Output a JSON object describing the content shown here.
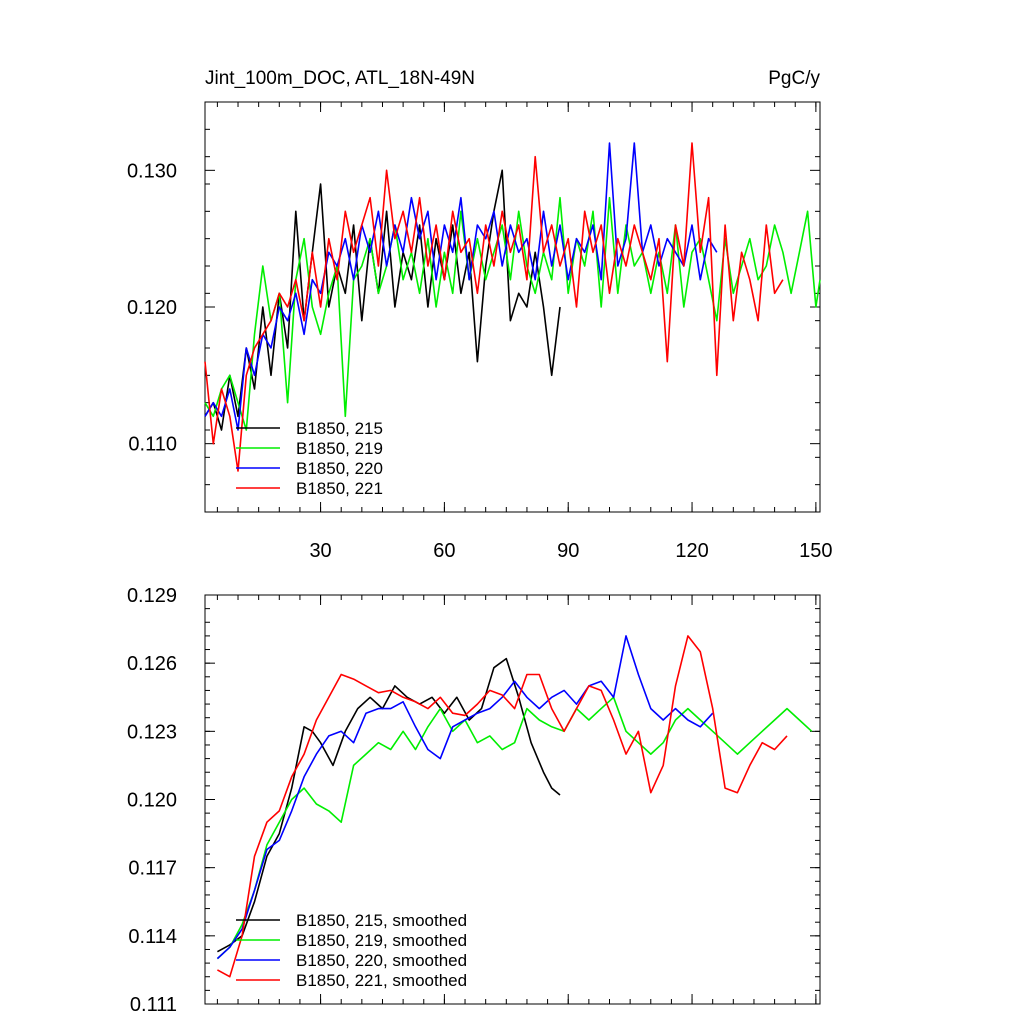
{
  "chart_data": [
    {
      "type": "line",
      "title": "Jint_100m_DOC, ATL_18N-49N",
      "units": "PgC/y",
      "xlim": [
        2,
        151
      ],
      "ylim": [
        0.105,
        0.135
      ],
      "xticks": [
        30,
        60,
        90,
        120,
        150
      ],
      "xtick_labels": [
        "30",
        "60",
        "90",
        "120",
        "150"
      ],
      "yticks": [
        0.11,
        0.12,
        0.13
      ],
      "ytick_labels": [
        "0.110",
        "0.120",
        "0.130"
      ],
      "legend_position": "bottom-left",
      "series": [
        {
          "name": "B1850, 215",
          "color": "#000000",
          "x": [
            2,
            4,
            6,
            8,
            10,
            12,
            14,
            16,
            18,
            20,
            22,
            24,
            26,
            28,
            30,
            32,
            34,
            36,
            38,
            40,
            42,
            44,
            46,
            48,
            50,
            52,
            54,
            56,
            58,
            60,
            62,
            64,
            66,
            68,
            70,
            72,
            74,
            76,
            78,
            80,
            82,
            84,
            86,
            88
          ],
          "y": [
            0.112,
            0.113,
            0.111,
            0.115,
            0.112,
            0.117,
            0.114,
            0.12,
            0.115,
            0.121,
            0.117,
            0.127,
            0.119,
            0.124,
            0.129,
            0.12,
            0.123,
            0.121,
            0.126,
            0.119,
            0.125,
            0.121,
            0.127,
            0.12,
            0.124,
            0.122,
            0.126,
            0.12,
            0.125,
            0.122,
            0.126,
            0.121,
            0.124,
            0.116,
            0.123,
            0.127,
            0.13,
            0.119,
            0.121,
            0.12,
            0.124,
            0.12,
            0.115,
            0.12
          ]
        },
        {
          "name": "B1850, 219",
          "color": "#00ee00",
          "x": [
            2,
            4,
            6,
            8,
            10,
            12,
            14,
            16,
            18,
            20,
            22,
            24,
            26,
            28,
            30,
            32,
            34,
            36,
            38,
            40,
            42,
            44,
            46,
            48,
            50,
            52,
            54,
            56,
            58,
            60,
            62,
            64,
            66,
            68,
            70,
            72,
            74,
            76,
            78,
            80,
            82,
            84,
            86,
            88,
            90,
            92,
            94,
            96,
            98,
            100,
            102,
            104,
            106,
            108,
            110,
            112,
            114,
            116,
            118,
            120,
            122,
            124,
            126,
            128,
            130,
            132,
            134,
            136,
            138,
            140,
            142,
            144,
            146,
            148,
            150,
            151
          ],
          "y": [
            0.113,
            0.112,
            0.114,
            0.115,
            0.113,
            0.111,
            0.118,
            0.123,
            0.119,
            0.121,
            0.113,
            0.122,
            0.125,
            0.12,
            0.118,
            0.121,
            0.123,
            0.112,
            0.122,
            0.123,
            0.125,
            0.121,
            0.123,
            0.126,
            0.122,
            0.124,
            0.121,
            0.125,
            0.12,
            0.124,
            0.121,
            0.127,
            0.122,
            0.125,
            0.122,
            0.124,
            0.126,
            0.122,
            0.127,
            0.123,
            0.121,
            0.124,
            0.122,
            0.128,
            0.121,
            0.125,
            0.123,
            0.127,
            0.12,
            0.128,
            0.121,
            0.126,
            0.123,
            0.124,
            0.121,
            0.124,
            0.121,
            0.126,
            0.12,
            0.124,
            0.125,
            0.122,
            0.119,
            0.125,
            0.121,
            0.123,
            0.125,
            0.122,
            0.123,
            0.126,
            0.124,
            0.121,
            0.124,
            0.127,
            0.12,
            0.122
          ]
        },
        {
          "name": "B1850, 220",
          "color": "#0000ff",
          "x": [
            2,
            4,
            6,
            8,
            10,
            12,
            14,
            16,
            18,
            20,
            22,
            24,
            26,
            28,
            30,
            32,
            34,
            36,
            38,
            40,
            42,
            44,
            46,
            48,
            50,
            52,
            54,
            56,
            58,
            60,
            62,
            64,
            66,
            68,
            70,
            72,
            74,
            76,
            78,
            80,
            82,
            84,
            86,
            88,
            90,
            92,
            94,
            96,
            98,
            100,
            102,
            104,
            106,
            108,
            110,
            112,
            114,
            116,
            118,
            120,
            122,
            124,
            126
          ],
          "y": [
            0.112,
            0.113,
            0.112,
            0.114,
            0.111,
            0.117,
            0.115,
            0.118,
            0.117,
            0.12,
            0.119,
            0.121,
            0.118,
            0.122,
            0.121,
            0.124,
            0.123,
            0.125,
            0.122,
            0.126,
            0.124,
            0.127,
            0.123,
            0.126,
            0.124,
            0.128,
            0.125,
            0.127,
            0.122,
            0.126,
            0.124,
            0.128,
            0.122,
            0.126,
            0.125,
            0.127,
            0.123,
            0.126,
            0.124,
            0.125,
            0.122,
            0.127,
            0.123,
            0.126,
            0.122,
            0.125,
            0.124,
            0.126,
            0.122,
            0.132,
            0.123,
            0.125,
            0.132,
            0.124,
            0.126,
            0.123,
            0.125,
            0.124,
            0.123,
            0.126,
            0.122,
            0.125,
            0.124
          ]
        },
        {
          "name": "B1850, 221",
          "color": "#ff0000",
          "x": [
            2,
            4,
            6,
            8,
            10,
            12,
            14,
            16,
            18,
            20,
            22,
            24,
            26,
            28,
            30,
            32,
            34,
            36,
            38,
            40,
            42,
            44,
            46,
            48,
            50,
            52,
            54,
            56,
            58,
            60,
            62,
            64,
            66,
            68,
            70,
            72,
            74,
            76,
            78,
            80,
            82,
            84,
            86,
            88,
            90,
            92,
            94,
            96,
            98,
            100,
            102,
            104,
            106,
            108,
            110,
            112,
            114,
            116,
            118,
            120,
            122,
            124,
            126,
            128,
            130,
            132,
            134,
            136,
            138,
            140,
            142
          ],
          "y": [
            0.116,
            0.11,
            0.114,
            0.112,
            0.108,
            0.115,
            0.117,
            0.118,
            0.119,
            0.121,
            0.12,
            0.122,
            0.119,
            0.124,
            0.12,
            0.125,
            0.122,
            0.127,
            0.124,
            0.126,
            0.128,
            0.123,
            0.13,
            0.125,
            0.127,
            0.124,
            0.128,
            0.123,
            0.126,
            0.122,
            0.127,
            0.124,
            0.125,
            0.121,
            0.126,
            0.123,
            0.127,
            0.124,
            0.126,
            0.122,
            0.131,
            0.124,
            0.126,
            0.123,
            0.125,
            0.12,
            0.127,
            0.124,
            0.126,
            0.121,
            0.125,
            0.123,
            0.126,
            0.124,
            0.122,
            0.125,
            0.116,
            0.126,
            0.123,
            0.132,
            0.124,
            0.128,
            0.115,
            0.126,
            0.119,
            0.124,
            0.122,
            0.119,
            0.126,
            0.121,
            0.122
          ]
        }
      ]
    },
    {
      "type": "line",
      "title": "",
      "xlim": [
        2,
        151
      ],
      "ylim": [
        0.111,
        0.129
      ],
      "xticks": [
        30,
        60,
        90,
        120,
        150
      ],
      "yticks": [
        0.111,
        0.114,
        0.117,
        0.12,
        0.123,
        0.126,
        0.129
      ],
      "ytick_labels": [
        "0.111",
        "0.114",
        "0.117",
        "0.120",
        "0.123",
        "0.126",
        "0.129"
      ],
      "legend_position": "bottom-left",
      "series": [
        {
          "name": "B1850, 215, smoothed",
          "color": "#000000",
          "x": [
            5,
            8,
            11,
            14,
            17,
            20,
            23,
            26,
            28,
            30,
            33,
            36,
            39,
            42,
            45,
            48,
            51,
            54,
            57,
            60,
            63,
            66,
            69,
            72,
            75,
            78,
            81,
            84,
            86,
            88
          ],
          "y": [
            0.1133,
            0.1136,
            0.114,
            0.1155,
            0.1175,
            0.1185,
            0.1205,
            0.1232,
            0.123,
            0.1225,
            0.1215,
            0.123,
            0.124,
            0.1245,
            0.124,
            0.125,
            0.1245,
            0.1242,
            0.1245,
            0.1238,
            0.1245,
            0.1235,
            0.124,
            0.1258,
            0.1262,
            0.1245,
            0.1225,
            0.1212,
            0.1205,
            0.1202
          ]
        },
        {
          "name": "B1850, 219, smoothed",
          "color": "#00ee00",
          "x": [
            5,
            8,
            11,
            14,
            17,
            20,
            23,
            26,
            29,
            32,
            35,
            38,
            41,
            44,
            47,
            50,
            53,
            56,
            59,
            62,
            65,
            68,
            71,
            74,
            77,
            80,
            83,
            86,
            89,
            92,
            95,
            98,
            101,
            104,
            107,
            110,
            113,
            116,
            119,
            122,
            125,
            128,
            131,
            134,
            137,
            140,
            143,
            146,
            149
          ],
          "y": [
            0.113,
            0.1135,
            0.1145,
            0.116,
            0.118,
            0.119,
            0.12,
            0.1205,
            0.1198,
            0.1195,
            0.119,
            0.1215,
            0.122,
            0.1225,
            0.1222,
            0.123,
            0.1222,
            0.1232,
            0.124,
            0.123,
            0.1235,
            0.1225,
            0.1228,
            0.1222,
            0.1225,
            0.124,
            0.1235,
            0.1232,
            0.123,
            0.124,
            0.1235,
            0.124,
            0.1245,
            0.123,
            0.1225,
            0.122,
            0.1225,
            0.1235,
            0.124,
            0.1235,
            0.123,
            0.1225,
            0.122,
            0.1225,
            0.123,
            0.1235,
            0.124,
            0.1235,
            0.123
          ]
        },
        {
          "name": "B1850, 220, smoothed",
          "color": "#0000ff",
          "x": [
            5,
            8,
            11,
            14,
            17,
            20,
            23,
            26,
            29,
            32,
            35,
            38,
            41,
            44,
            47,
            50,
            53,
            56,
            59,
            62,
            65,
            68,
            71,
            74,
            77,
            80,
            83,
            86,
            89,
            92,
            95,
            98,
            101,
            104,
            107,
            110,
            113,
            116,
            119,
            122,
            125
          ],
          "y": [
            0.113,
            0.1135,
            0.1143,
            0.116,
            0.1178,
            0.1182,
            0.1195,
            0.121,
            0.122,
            0.1228,
            0.123,
            0.1225,
            0.1238,
            0.124,
            0.124,
            0.1243,
            0.1232,
            0.1222,
            0.1218,
            0.1232,
            0.1235,
            0.1238,
            0.124,
            0.1245,
            0.1252,
            0.1245,
            0.124,
            0.1245,
            0.1248,
            0.1242,
            0.125,
            0.1252,
            0.1245,
            0.1272,
            0.1255,
            0.124,
            0.1235,
            0.124,
            0.1235,
            0.1232,
            0.1238
          ]
        },
        {
          "name": "B1850, 221, smoothed",
          "color": "#ff0000",
          "x": [
            5,
            8,
            11,
            14,
            17,
            20,
            23,
            26,
            29,
            32,
            35,
            38,
            41,
            44,
            47,
            50,
            53,
            56,
            59,
            62,
            65,
            68,
            71,
            74,
            77,
            80,
            83,
            86,
            89,
            92,
            95,
            98,
            101,
            104,
            107,
            110,
            113,
            116,
            119,
            122,
            125,
            128,
            131,
            134,
            137,
            140,
            143
          ],
          "y": [
            0.1125,
            0.1122,
            0.114,
            0.1175,
            0.119,
            0.1195,
            0.121,
            0.122,
            0.1235,
            0.1245,
            0.1255,
            0.1253,
            0.125,
            0.1247,
            0.1248,
            0.1245,
            0.1243,
            0.124,
            0.1245,
            0.1238,
            0.1237,
            0.1242,
            0.1248,
            0.1246,
            0.124,
            0.1255,
            0.1255,
            0.124,
            0.123,
            0.124,
            0.125,
            0.1248,
            0.1235,
            0.122,
            0.123,
            0.1203,
            0.1215,
            0.125,
            0.1272,
            0.1265,
            0.124,
            0.1205,
            0.1203,
            0.1215,
            0.1225,
            0.1222,
            0.1228
          ]
        }
      ]
    }
  ]
}
